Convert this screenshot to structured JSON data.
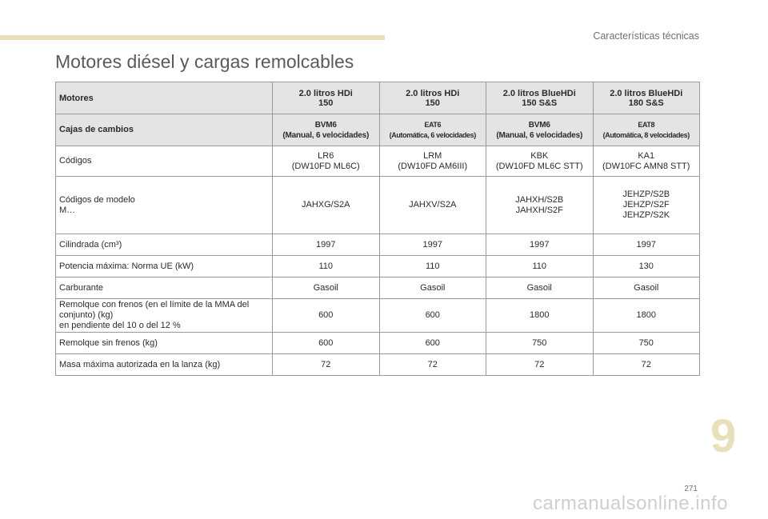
{
  "header": {
    "section": "Características técnicas"
  },
  "title": "Motores diésel y cargas remolcables",
  "table": {
    "columns": [
      "Motores",
      [
        "2.0 litros HDi",
        "150"
      ],
      [
        "2.0 litros HDi",
        "150"
      ],
      [
        "2.0 litros BlueHDi",
        "150 S&S"
      ],
      [
        "2.0 litros BlueHDi",
        "180 S&S"
      ]
    ],
    "rows": [
      {
        "label": [
          "Cajas de cambios"
        ],
        "values": [
          [
            "BVM6",
            "(Manual, 6 velocidades)"
          ],
          [
            "EAT6",
            "(Automática, 6 velocidades)"
          ],
          [
            "BVM6",
            "(Manual, 6 velocidades)"
          ],
          [
            "EAT8",
            "(Automática, 8 velocidades)"
          ]
        ]
      },
      {
        "label": [
          "Códigos"
        ],
        "values": [
          [
            "LR6",
            "(DW10FD ML6C)"
          ],
          [
            "LRM",
            "(DW10FD AM6III)"
          ],
          [
            "KBK",
            "(DW10FD ML6C STT)"
          ],
          [
            "KA1",
            "(DW10FC AMN8 STT)"
          ]
        ]
      },
      {
        "label": [
          "Códigos de modelo",
          "M…"
        ],
        "values": [
          [
            "JAHXG/S2A"
          ],
          [
            "JAHXV/S2A"
          ],
          [
            "JAHXH/S2B",
            "JAHXH/S2F"
          ],
          [
            "JEHZP/S2B",
            "JEHZP/S2F",
            "JEHZP/S2K"
          ]
        ]
      },
      {
        "label": [
          "Cilindrada (cm³)"
        ],
        "values": [
          [
            "1997"
          ],
          [
            "1997"
          ],
          [
            "1997"
          ],
          [
            "1997"
          ]
        ]
      },
      {
        "label": [
          "Potencia máxima: Norma UE (kW)"
        ],
        "values": [
          [
            "110"
          ],
          [
            "110"
          ],
          [
            "110"
          ],
          [
            "130"
          ]
        ]
      },
      {
        "label": [
          "Carburante"
        ],
        "values": [
          [
            "Gasoil"
          ],
          [
            "Gasoil"
          ],
          [
            "Gasoil"
          ],
          [
            "Gasoil"
          ]
        ]
      },
      {
        "label": [
          "Remolque con frenos (en el límite de la MMA del",
          "conjunto) (kg)",
          "en pendiente del 10 o del 12 %"
        ],
        "values": [
          [
            "600"
          ],
          [
            "600"
          ],
          [
            "1800"
          ],
          [
            "1800"
          ]
        ]
      },
      {
        "label": [
          "Remolque sin frenos (kg)"
        ],
        "values": [
          [
            "600"
          ],
          [
            "600"
          ],
          [
            "750"
          ],
          [
            "750"
          ]
        ]
      },
      {
        "label": [
          "Masa máxima autorizada en la lanza (kg)"
        ],
        "values": [
          [
            "72"
          ],
          [
            "72"
          ],
          [
            "72"
          ],
          [
            "72"
          ]
        ]
      }
    ]
  },
  "chapter_number": "9",
  "page_number": "271",
  "watermark": "carmanualsonline.info"
}
